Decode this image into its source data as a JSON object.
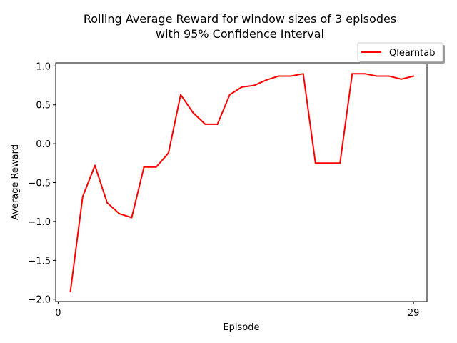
{
  "chart_data": {
    "type": "line",
    "title": "Rolling Average Reward for window sizes of 3 episodes",
    "subtitle": "with 95% Confidence Interval",
    "xlabel": "Episode",
    "ylabel": "Average Reward",
    "xlim": [
      -0.2,
      30.1
    ],
    "ylim": [
      -2.03,
      1.04
    ],
    "x_ticks": [
      {
        "value": 0,
        "label": "0"
      },
      {
        "value": 29,
        "label": "29"
      }
    ],
    "y_ticks": [
      {
        "value": 1.0,
        "label": "1.0"
      },
      {
        "value": 0.5,
        "label": "0.5"
      },
      {
        "value": 0.0,
        "label": "0.0"
      },
      {
        "value": -0.5,
        "label": "−0.5"
      },
      {
        "value": -1.0,
        "label": "−1.0"
      },
      {
        "value": -1.5,
        "label": "−1.5"
      },
      {
        "value": -2.0,
        "label": "−2.0"
      }
    ],
    "grid": false,
    "legend_position": "top-right",
    "series": [
      {
        "name": "Qlearntab",
        "color": "#ff0000",
        "x": [
          1,
          2,
          3,
          4,
          5,
          6,
          7,
          8,
          9,
          10,
          11,
          12,
          13,
          14,
          15,
          16,
          17,
          18,
          19,
          20,
          21,
          22,
          23,
          24,
          25,
          26,
          27,
          28,
          29
        ],
        "y": [
          -1.9,
          -0.68,
          -0.28,
          -0.76,
          -0.9,
          -0.95,
          -0.3,
          -0.3,
          -0.12,
          0.63,
          0.4,
          0.25,
          0.25,
          0.63,
          0.73,
          0.75,
          0.82,
          0.87,
          0.87,
          0.9,
          -0.25,
          -0.25,
          -0.25,
          0.9,
          0.9,
          0.87,
          0.87,
          0.83,
          0.87
        ]
      }
    ]
  }
}
